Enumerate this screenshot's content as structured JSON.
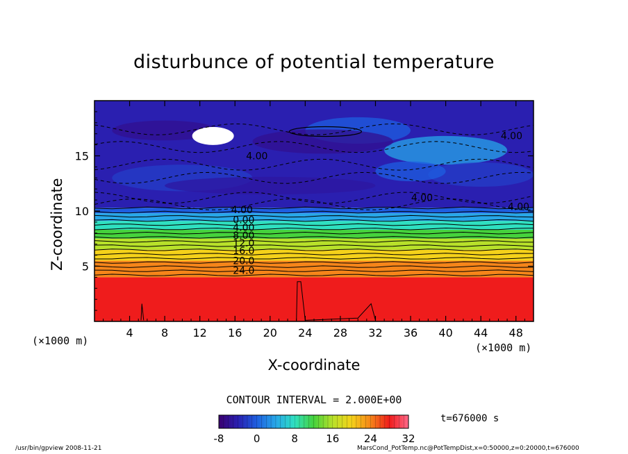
{
  "chart_data": {
    "type": "heatmap",
    "title": "disturbunce of potential temperature",
    "xlabel": "X-coordinate",
    "ylabel": "Z-coordinate",
    "x_unit_left": "(×1000 m)",
    "x_unit_right": "(×1000 m)",
    "xlim": [
      0,
      50
    ],
    "ylim": [
      0,
      20
    ],
    "x_ticks": [
      4,
      8,
      12,
      16,
      20,
      24,
      28,
      32,
      36,
      40,
      44,
      48
    ],
    "y_ticks": [
      5,
      10,
      15
    ],
    "contour_interval_text": "CONTOUR INTERVAL = 2.000E+00",
    "colorbar": {
      "min": -8,
      "max": 32,
      "ticks": [
        -8,
        0,
        8,
        16,
        24,
        32
      ],
      "colors": [
        "#3a0070",
        "#2a1fb0",
        "#1e5fe0",
        "#27a7e8",
        "#2fe0c0",
        "#45d23c",
        "#b8e12a",
        "#f5d21a",
        "#f5851a",
        "#ef1c1c",
        "#ff6a8a"
      ]
    },
    "layers": [
      {
        "z_bottom": 0,
        "z_top": 4,
        "value": 28
      },
      {
        "z_bottom": 4,
        "z_top": 5.5,
        "value": 24
      },
      {
        "z_bottom": 5.5,
        "z_top": 6.5,
        "value": 20
      },
      {
        "z_bottom": 6.5,
        "z_top": 7.5,
        "value": 16
      },
      {
        "z_bottom": 7.5,
        "z_top": 8.3,
        "value": 12
      },
      {
        "z_bottom": 8.3,
        "z_top": 9.1,
        "value": 8
      },
      {
        "z_bottom": 9.1,
        "z_top": 9.8,
        "value": 4
      },
      {
        "z_bottom": 9.8,
        "z_top": 10.3,
        "value": 0
      },
      {
        "z_bottom": 10.3,
        "z_top": 20,
        "value": -4
      }
    ],
    "contour_labels": [
      {
        "text": "4.00",
        "x": 18.5,
        "z": 14.7
      },
      {
        "text": "4.00",
        "x": 47.5,
        "z": 16.5
      },
      {
        "text": "4.00",
        "x": 37.3,
        "z": 10.9
      },
      {
        "text": "4.00",
        "x": 48.3,
        "z": 10.1
      },
      {
        "text": "4.00",
        "x": 16.8,
        "z": 9.8
      },
      {
        "text": "0.00",
        "x": 17.0,
        "z": 8.9
      },
      {
        "text": "4.00",
        "x": 17.0,
        "z": 8.2
      },
      {
        "text": "8.00",
        "x": 17.0,
        "z": 7.5
      },
      {
        "text": "12.0",
        "x": 17.0,
        "z": 6.8
      },
      {
        "text": "16.0",
        "x": 17.0,
        "z": 6.1
      },
      {
        "text": "20.0",
        "x": 17.0,
        "z": 5.2
      },
      {
        "text": "24.0",
        "x": 17.0,
        "z": 4.3
      }
    ]
  },
  "time_label": "t=676000 s",
  "footer": {
    "left": "/usr/bin/gpview   2008-11-21",
    "right": "MarsCond_PotTemp.nc@PotTempDist,x=0:50000,z=0:20000,t=676000"
  }
}
